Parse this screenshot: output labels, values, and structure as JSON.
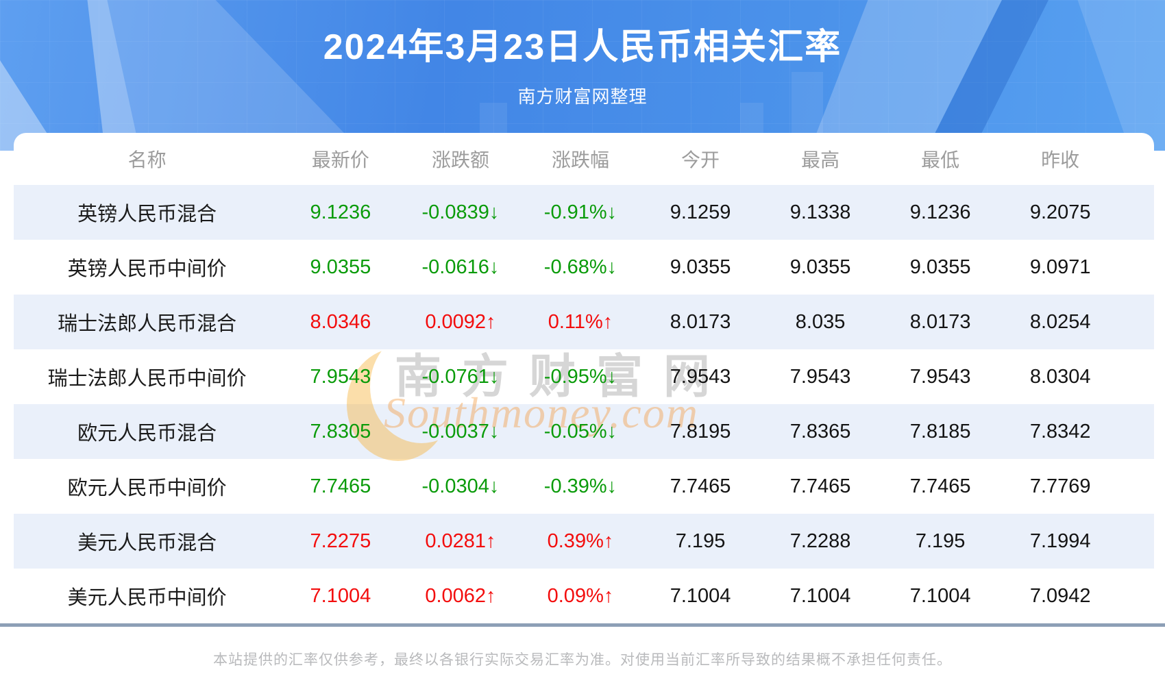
{
  "header": {
    "title": "2024年3月23日人民币相关汇率",
    "subtitle": "南方财富网整理"
  },
  "table": {
    "columns": [
      "名称",
      "最新价",
      "涨跌额",
      "涨跌幅",
      "今开",
      "最高",
      "最低",
      "昨收"
    ],
    "rows": [
      {
        "name": "英镑人民币混合",
        "trend": "down",
        "values": [
          "9.1236",
          "-0.0839↓",
          "-0.91%↓",
          "9.1259",
          "9.1338",
          "9.1236",
          "9.2075"
        ]
      },
      {
        "name": "英镑人民币中间价",
        "trend": "down",
        "values": [
          "9.0355",
          "-0.0616↓",
          "-0.68%↓",
          "9.0355",
          "9.0355",
          "9.0355",
          "9.0971"
        ]
      },
      {
        "name": "瑞士法郎人民币混合",
        "trend": "up",
        "values": [
          "8.0346",
          "0.0092↑",
          "0.11%↑",
          "8.0173",
          "8.035",
          "8.0173",
          "8.0254"
        ]
      },
      {
        "name": "瑞士法郎人民币中间价",
        "trend": "down",
        "values": [
          "7.9543",
          "-0.0761↓",
          "-0.95%↓",
          "7.9543",
          "7.9543",
          "7.9543",
          "8.0304"
        ]
      },
      {
        "name": "欧元人民币混合",
        "trend": "down",
        "values": [
          "7.8305",
          "-0.0037↓",
          "-0.05%↓",
          "7.8195",
          "7.8365",
          "7.8185",
          "7.8342"
        ]
      },
      {
        "name": "欧元人民币中间价",
        "trend": "down",
        "values": [
          "7.7465",
          "-0.0304↓",
          "-0.39%↓",
          "7.7465",
          "7.7465",
          "7.7465",
          "7.7769"
        ]
      },
      {
        "name": "美元人民币混合",
        "trend": "up",
        "values": [
          "7.2275",
          "0.0281↑",
          "0.39%↑",
          "7.195",
          "7.2288",
          "7.195",
          "7.1994"
        ]
      },
      {
        "name": "美元人民币中间价",
        "trend": "up",
        "values": [
          "7.1004",
          "0.0062↑",
          "0.09%↑",
          "7.1004",
          "7.1004",
          "7.1004",
          "7.0942"
        ]
      }
    ]
  },
  "watermark": {
    "cn": "南方财富网",
    "en": "Southmoney.com"
  },
  "footer": {
    "disclaimer": "本站提供的汇率仅供参考，最终以各银行实际交易汇率为准。对使用当前汇率所导致的结果概不承担任何责任。"
  },
  "colors": {
    "up": "#f30d0d",
    "down": "#0a9b0a",
    "row_alt": "#eaf0fa",
    "rule": "#8d9fb6",
    "header_gradient_start": "#5e9ff0",
    "header_gradient_end": "#58a1f1"
  }
}
